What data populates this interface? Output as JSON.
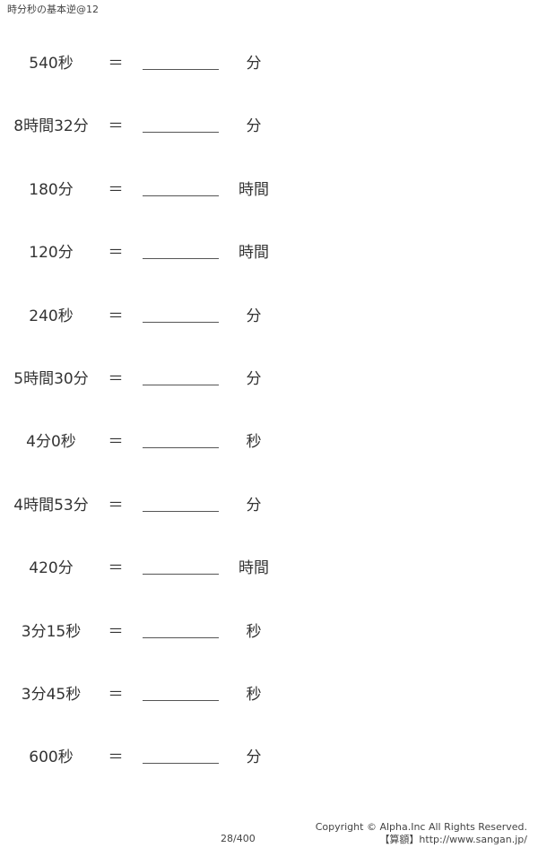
{
  "title": "時分秒の基本逆@12",
  "problems": [
    {
      "expr": "540秒",
      "eq": "＝",
      "unit": "分"
    },
    {
      "expr": "8時間32分",
      "eq": "＝",
      "unit": "分"
    },
    {
      "expr": "180分",
      "eq": "＝",
      "unit": "時間"
    },
    {
      "expr": "120分",
      "eq": "＝",
      "unit": "時間"
    },
    {
      "expr": "240秒",
      "eq": "＝",
      "unit": "分"
    },
    {
      "expr": "5時間30分",
      "eq": "＝",
      "unit": "分"
    },
    {
      "expr": "4分0秒",
      "eq": "＝",
      "unit": "秒"
    },
    {
      "expr": "4時間53分",
      "eq": "＝",
      "unit": "分"
    },
    {
      "expr": "420分",
      "eq": "＝",
      "unit": "時間"
    },
    {
      "expr": "3分15秒",
      "eq": "＝",
      "unit": "秒"
    },
    {
      "expr": "3分45秒",
      "eq": "＝",
      "unit": "秒"
    },
    {
      "expr": "600秒",
      "eq": "＝",
      "unit": "分"
    }
  ],
  "footer": {
    "page": "28/400",
    "copyright": "Copyright © Alpha.Inc All Rights Reserved.",
    "site": "【算額】http://www.sangan.jp/"
  }
}
